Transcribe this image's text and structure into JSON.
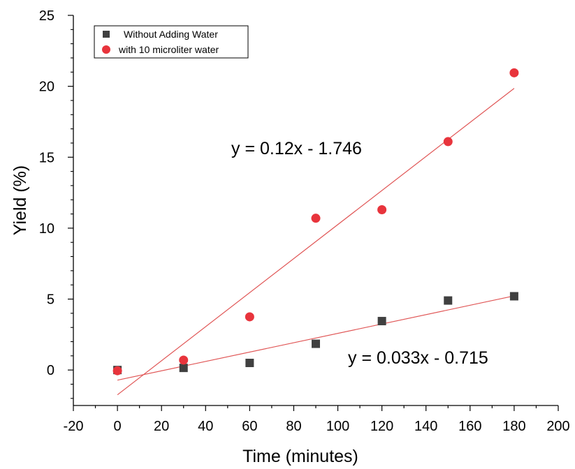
{
  "chart_data": {
    "type": "scatter",
    "title": "",
    "xlabel": "Time (minutes)",
    "ylabel": "Yield (%)",
    "xlim": [
      -20,
      200
    ],
    "ylim": [
      -2.5,
      25
    ],
    "x_ticks": [
      -20,
      0,
      20,
      40,
      60,
      80,
      100,
      120,
      140,
      160,
      180,
      200
    ],
    "y_ticks": [
      0,
      5,
      10,
      15,
      20,
      25
    ],
    "x_tick_labels": [
      "-20",
      "0",
      "20",
      "40",
      "60",
      "80",
      "100",
      "120",
      "140",
      "160",
      "180",
      "200"
    ],
    "y_tick_labels": [
      "0",
      "5",
      "10",
      "15",
      "20",
      "25"
    ],
    "grid": false,
    "legend_position": "top-left",
    "series": [
      {
        "name": "Without Adding Water",
        "marker": "square",
        "color": "#404040",
        "x": [
          0,
          30,
          60,
          90,
          120,
          150,
          180
        ],
        "y": [
          0.0,
          0.15,
          0.5,
          1.85,
          3.45,
          4.9,
          5.2
        ],
        "fit": {
          "slope": 0.033,
          "intercept": -0.715,
          "x_range": [
            0,
            180
          ],
          "color": "#e05555",
          "label": "y = 0.033x - 0.715"
        }
      },
      {
        "name": "with 10 microliter water",
        "marker": "circle",
        "color": "#e8343c",
        "x": [
          0,
          30,
          60,
          90,
          120,
          150,
          180
        ],
        "y": [
          -0.05,
          0.7,
          3.75,
          10.7,
          11.3,
          16.1,
          20.95
        ],
        "fit": {
          "slope": 0.12,
          "intercept": -1.746,
          "x_range": [
            0,
            180
          ],
          "color": "#e05555",
          "label": "y = 0.12x - 1.746"
        }
      }
    ]
  }
}
